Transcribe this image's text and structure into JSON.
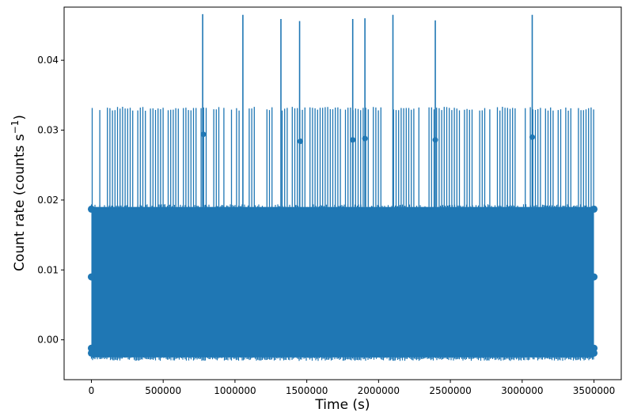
{
  "chart_data": {
    "type": "line",
    "title": "",
    "xlabel": "Time (s)",
    "ylabel_main": "Count rate (counts s",
    "ylabel_sup": "−1",
    "ylabel_close": ")",
    "xlim": [
      -190000,
      3690000
    ],
    "ylim": [
      -0.0057,
      0.0476
    ],
    "x_ticks": [
      0,
      500000,
      1000000,
      1500000,
      2000000,
      2500000,
      3000000,
      3500000
    ],
    "x_tick_labels": [
      "0",
      "500000",
      "1000000",
      "1500000",
      "2000000",
      "2500000",
      "3000000",
      "3500000"
    ],
    "y_ticks": [
      0.0,
      0.01,
      0.02,
      0.03,
      0.04
    ],
    "y_tick_labels": [
      "0.00",
      "0.01",
      "0.02",
      "0.03",
      "0.04"
    ],
    "grid": false,
    "series": [
      {
        "color": "#1f77b4",
        "x_range": [
          0,
          3500000
        ],
        "band_min": -0.0025,
        "band_max": 0.019,
        "upper_markers": 0.0187,
        "mid_markers": 0.009,
        "low_markers": -0.0012,
        "spike_level": 0.033,
        "tall_spikes": [
          {
            "x": 775000,
            "y": 0.0466
          },
          {
            "x": 1055000,
            "y": 0.0465
          },
          {
            "x": 1320000,
            "y": 0.0459
          },
          {
            "x": 1450000,
            "y": 0.0456
          },
          {
            "x": 1820000,
            "y": 0.0459
          },
          {
            "x": 1905000,
            "y": 0.046
          },
          {
            "x": 2100000,
            "y": 0.0465
          },
          {
            "x": 2395000,
            "y": 0.0457
          },
          {
            "x": 3070000,
            "y": 0.0465
          }
        ],
        "mid_spike_points": [
          {
            "x": 780000,
            "y": 0.0294
          },
          {
            "x": 1455000,
            "y": 0.0284
          },
          {
            "x": 1820000,
            "y": 0.0286
          },
          {
            "x": 1905000,
            "y": 0.0288
          },
          {
            "x": 2395000,
            "y": 0.0286
          },
          {
            "x": 3070000,
            "y": 0.029
          }
        ]
      }
    ]
  }
}
